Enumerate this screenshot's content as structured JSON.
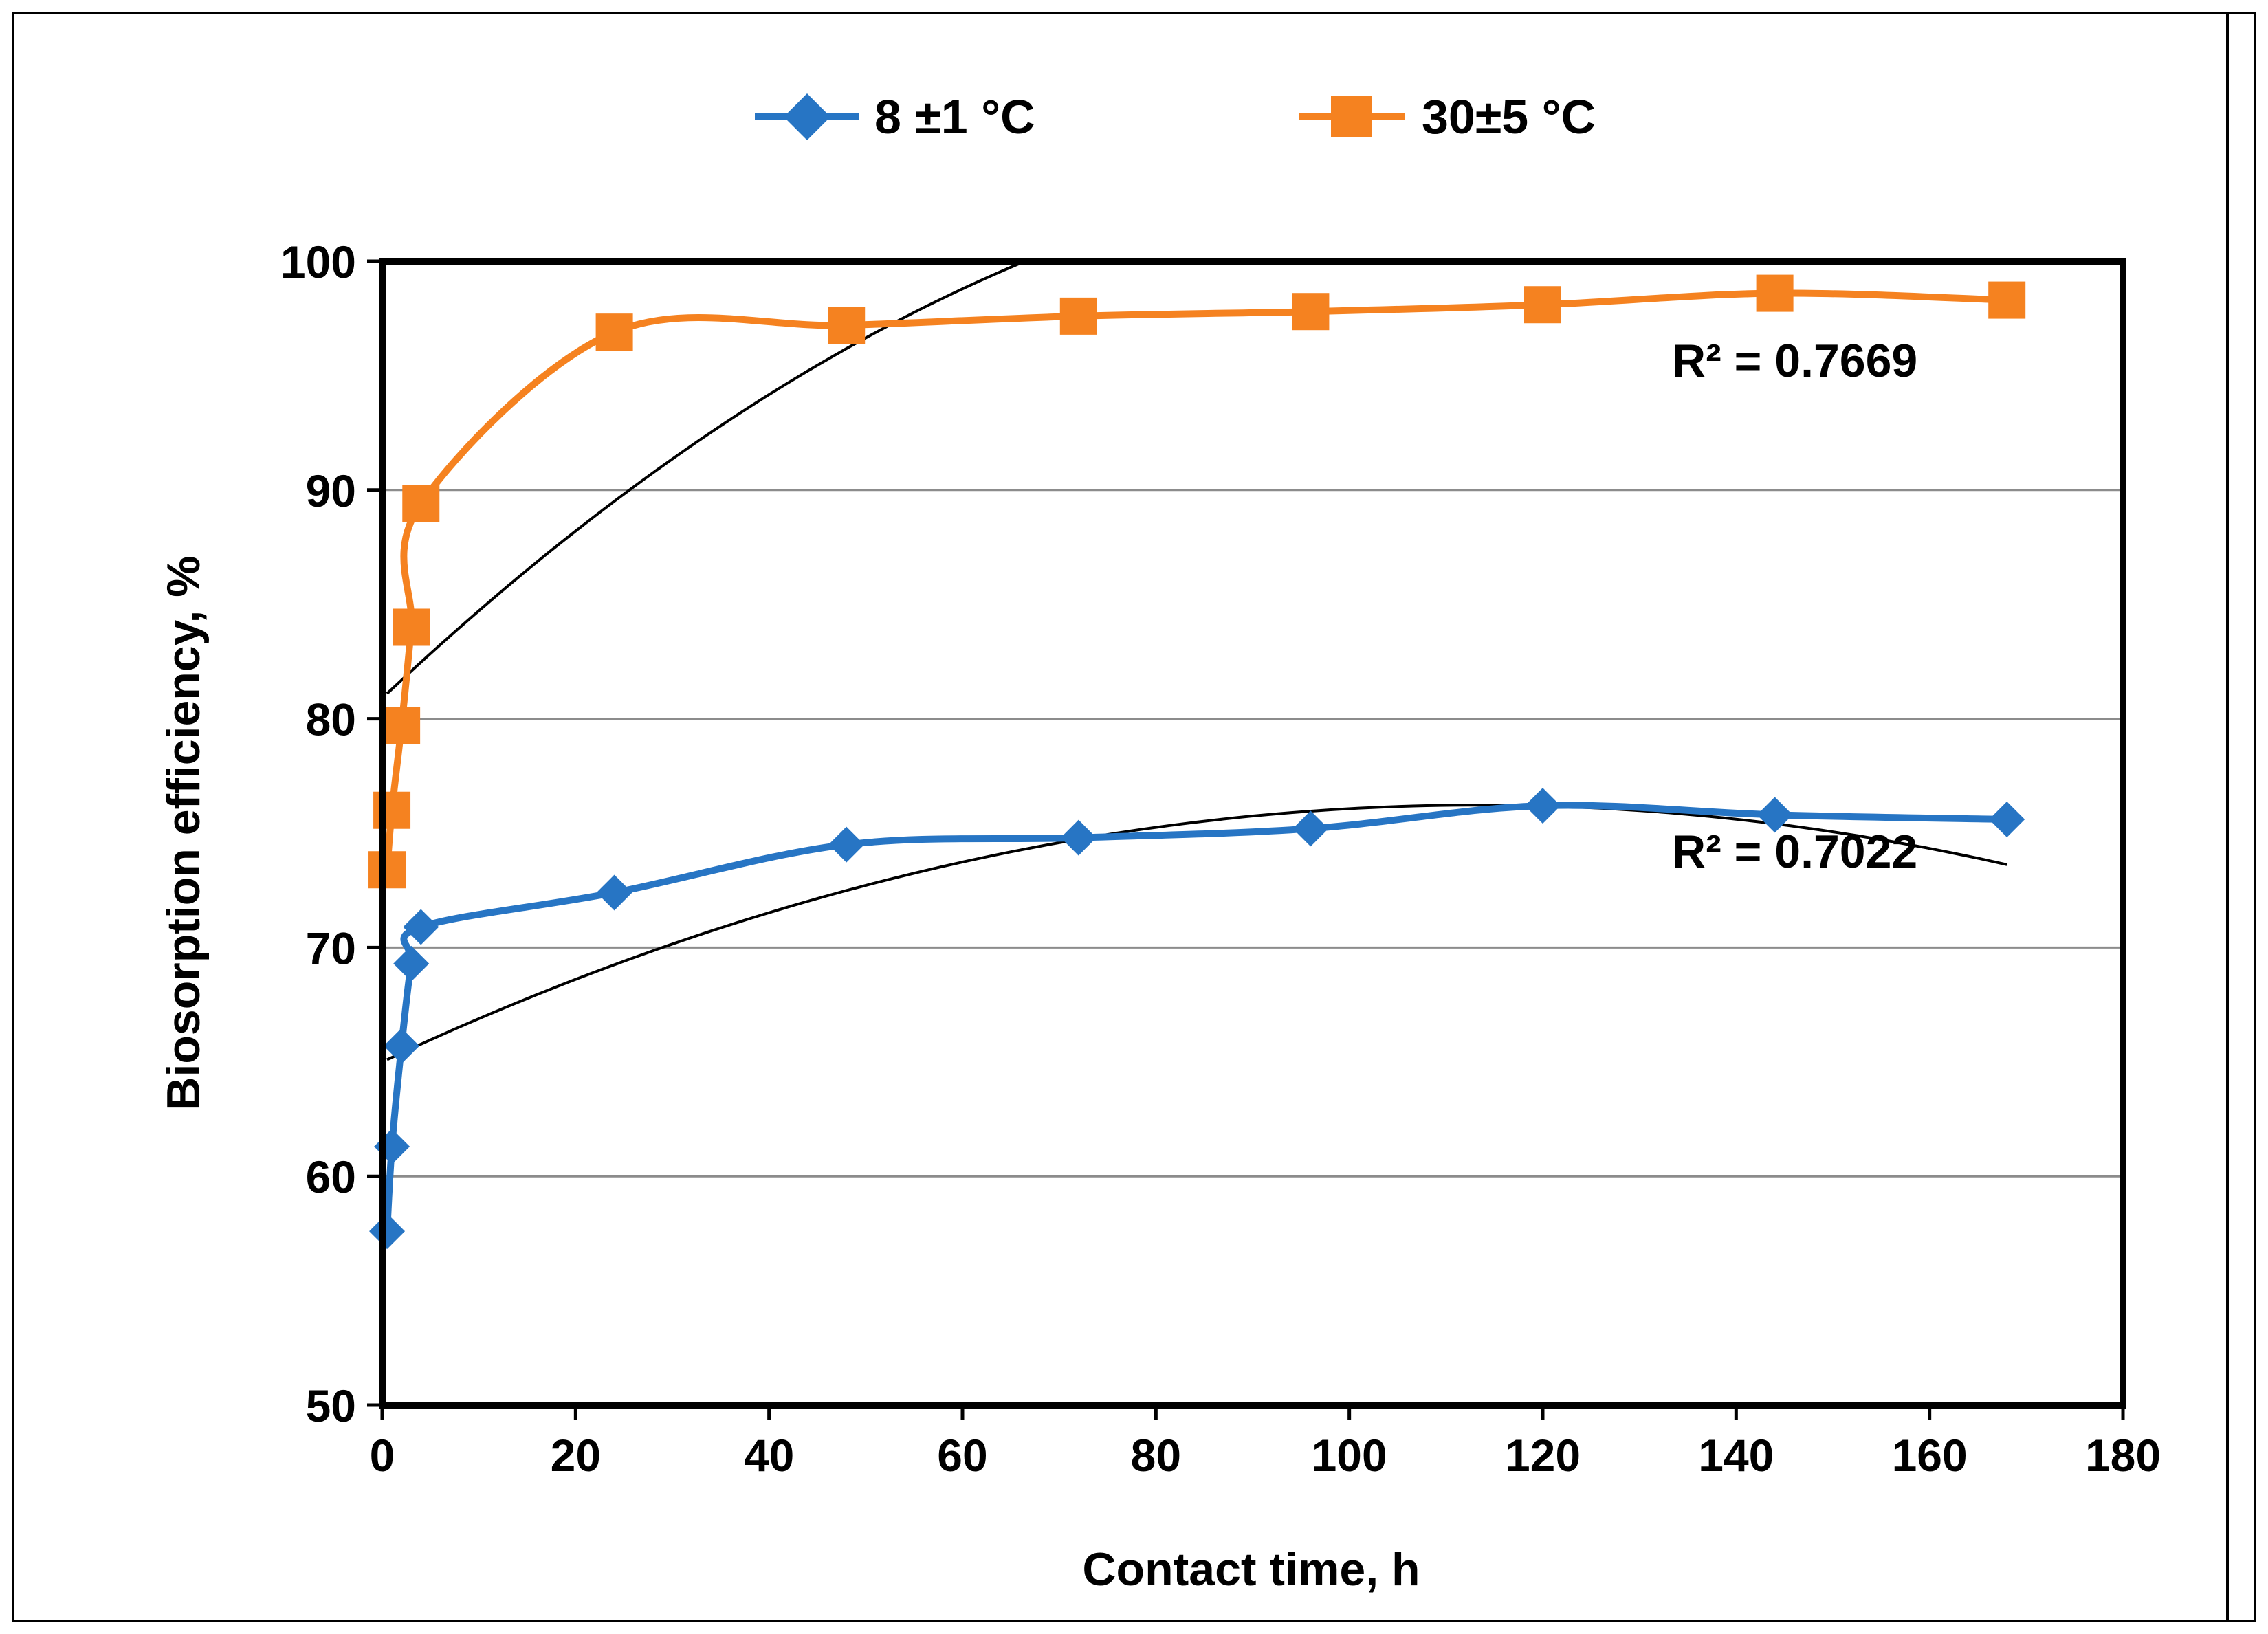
{
  "chart_data": {
    "type": "line",
    "title": "",
    "xlabel": "Contact time, h",
    "ylabel": "Biosorption efficiency, %",
    "xlim": [
      0,
      180
    ],
    "ylim": [
      50,
      100
    ],
    "xticks": [
      0,
      20,
      40,
      60,
      80,
      100,
      120,
      140,
      160,
      180
    ],
    "yticks": [
      50,
      60,
      70,
      80,
      90,
      100
    ],
    "grid": "horizontal",
    "legend_position": "top-center",
    "series": [
      {
        "name": "8 ±1 °C",
        "color": "#2775C4",
        "marker": "diamond",
        "x": [
          0.5,
          1,
          2,
          3,
          4,
          24,
          48,
          72,
          96,
          120,
          144,
          168
        ],
        "y": [
          57.6,
          61.3,
          65.7,
          69.3,
          70.9,
          72.4,
          74.5,
          74.8,
          75.2,
          76.2,
          75.8,
          75.6
        ],
        "trendline": {
          "type": "polynomial-2",
          "a": -0.000873,
          "b": 0.198,
          "c": 65.0,
          "x_range": [
            0.5,
            168
          ],
          "r2_label": "R² = 0.7022"
        }
      },
      {
        "name": "30±5 °C",
        "color": "#F58220",
        "marker": "square",
        "x": [
          0.5,
          1,
          2,
          3,
          4,
          24,
          48,
          72,
          96,
          120,
          144,
          168
        ],
        "y": [
          73.4,
          76.0,
          79.7,
          84.0,
          89.4,
          96.9,
          97.2,
          97.6,
          97.8,
          98.1,
          98.6,
          98.3
        ],
        "trendline": {
          "type": "polynomial-2",
          "a": -0.00168,
          "b": 0.399,
          "c": 80.9,
          "x_range": [
            0.5,
            168
          ],
          "r2_label": "R² = 0.7669"
        }
      }
    ]
  }
}
